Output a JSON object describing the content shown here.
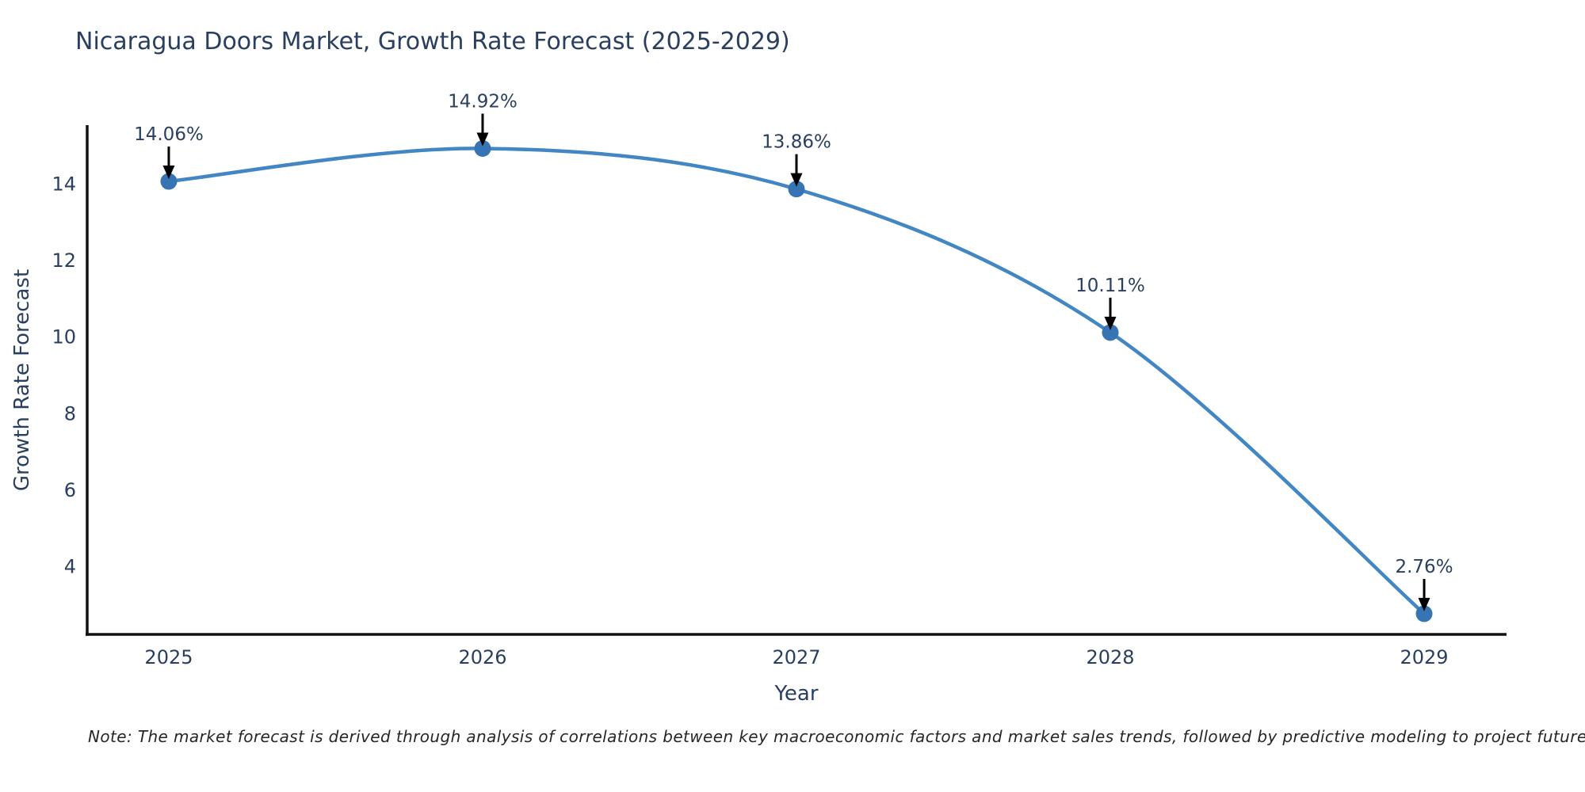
{
  "chart_data": {
    "type": "line",
    "title": "Nicaragua Doors Market, Growth Rate Forecast (2025-2029)",
    "xlabel": "Year",
    "ylabel": "Growth Rate Forecast",
    "x": [
      2025,
      2026,
      2027,
      2028,
      2029
    ],
    "series": [
      {
        "name": "Growth Rate Forecast",
        "values": [
          14.06,
          14.92,
          13.86,
          10.11,
          2.76
        ]
      }
    ],
    "point_labels": [
      "14.06%",
      "14.92%",
      "13.86%",
      "10.11%",
      "2.76%"
    ],
    "xticks": [
      "2025",
      "2026",
      "2027",
      "2028",
      "2029"
    ],
    "yticks": [
      4,
      6,
      8,
      10,
      12,
      14
    ],
    "xlim": [
      2024.74,
      2029.26
    ],
    "ylim": [
      2.22,
      15.53
    ],
    "grid": false,
    "legend": "none",
    "line_shape": "spline",
    "colors": {
      "line": "#4286c3",
      "marker": "#3674b4",
      "axis_line": "#111111",
      "tick_text": "#2a3f5f",
      "annotation_text": "#2a3f5f",
      "annotation_arrow": "#000000",
      "background": "#ffffff"
    },
    "note": "Note: The market forecast is derived through analysis of correlations between key macroeconomic factors and market sales trends, followed by predictive modeling to project future sales"
  }
}
